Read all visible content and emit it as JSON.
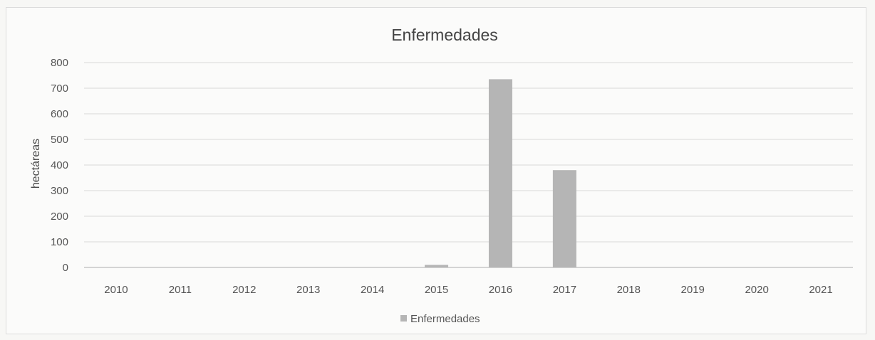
{
  "chart_data": {
    "type": "bar",
    "title": "Enfermedades",
    "xlabel": "",
    "ylabel": "hectáreas",
    "categories": [
      "2010",
      "2011",
      "2012",
      "2013",
      "2014",
      "2015",
      "2016",
      "2017",
      "2018",
      "2019",
      "2020",
      "2021"
    ],
    "series": [
      {
        "name": "Enfermedades",
        "values": [
          0,
          0,
          0,
          0,
          0,
          10,
          735,
          380,
          0,
          0,
          0,
          0
        ],
        "color": "#b5b5b5"
      }
    ],
    "ylim": [
      0,
      800
    ],
    "yticks": [
      0,
      100,
      200,
      300,
      400,
      500,
      600,
      700,
      800
    ],
    "grid": true,
    "legend": "bottom-center"
  }
}
